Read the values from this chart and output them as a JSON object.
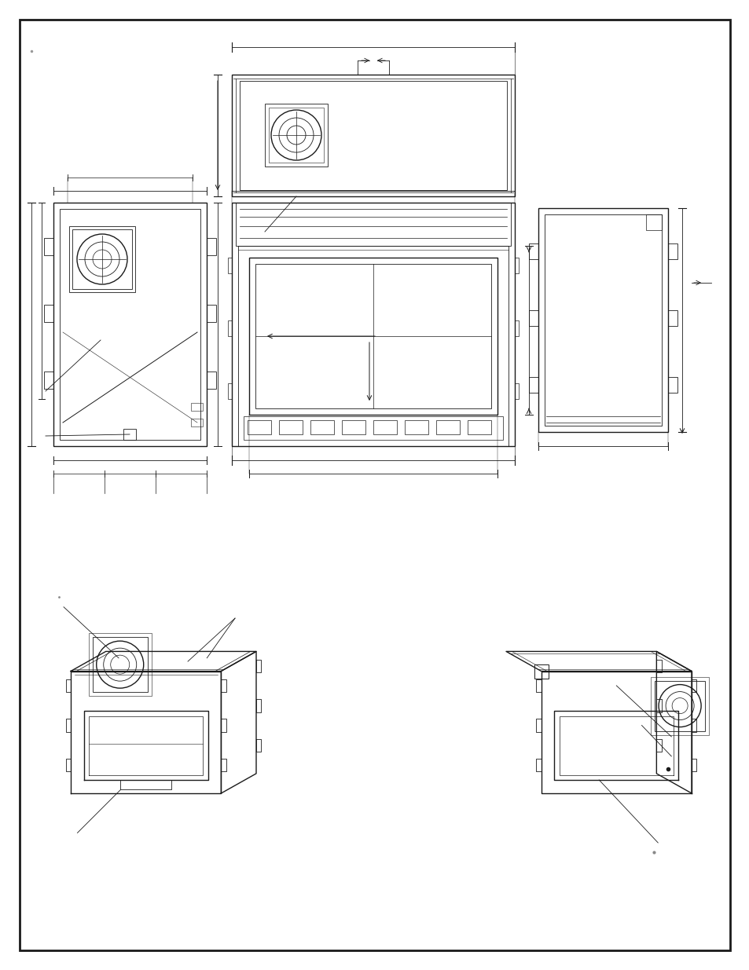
{
  "bg_color": "#ffffff",
  "line_color": "#1a1a1a",
  "border_color": "#000000"
}
